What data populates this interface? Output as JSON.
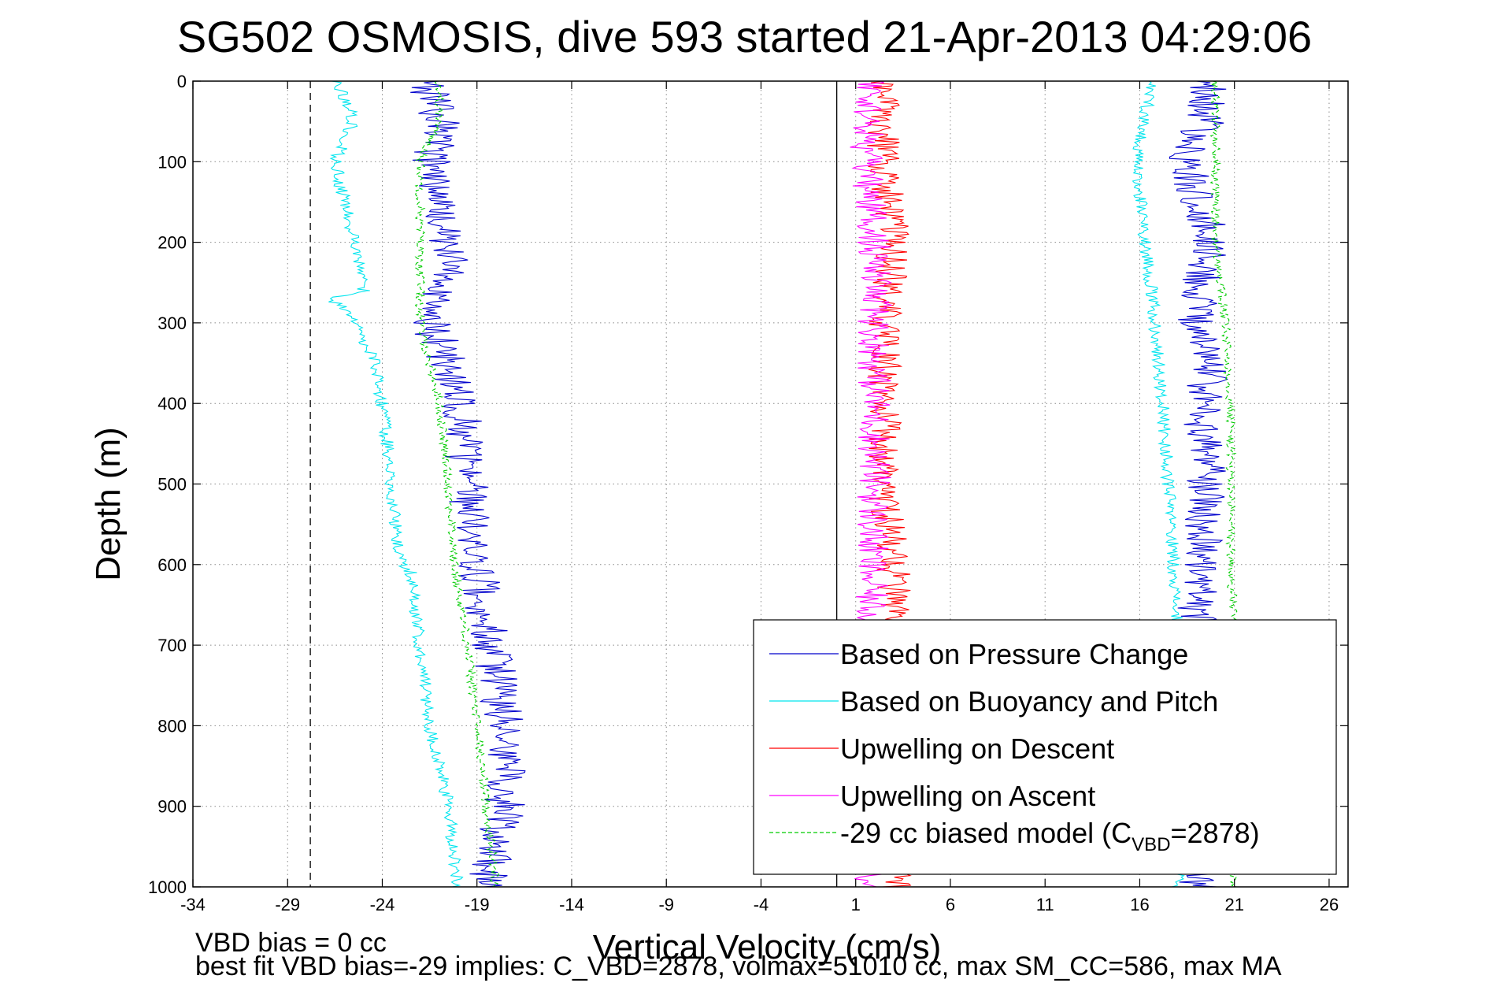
{
  "chart_data": {
    "type": "line",
    "title": "SG502 OSMOSIS, dive 593 started 21-Apr-2013 04:29:06",
    "xlabel": "Vertical Velocity (cm/s)",
    "ylabel": "Depth (m)",
    "xlim": [
      -34,
      27
    ],
    "ylim": [
      0,
      1000
    ],
    "y_reversed": true,
    "grid": "dotted",
    "xticks": [
      -34,
      -29,
      -24,
      -19,
      -14,
      -9,
      -4,
      1,
      6,
      11,
      16,
      21,
      26
    ],
    "yticks": [
      0,
      100,
      200,
      300,
      400,
      500,
      600,
      700,
      800,
      900,
      1000
    ],
    "reference_lines": [
      {
        "style": "dashed",
        "color": "#000000",
        "x": -27.8
      },
      {
        "style": "solid",
        "color": "#000000",
        "x": 0
      }
    ],
    "legend_position": "bottom-right",
    "series": [
      {
        "name": "Based on Pressure Change",
        "color": "#0000cc",
        "noise": 1.1,
        "descent": {
          "depth": [
            0,
            20,
            50,
            100,
            200,
            250,
            300,
            350,
            400,
            500,
            600,
            700,
            800,
            900,
            1000
          ],
          "velocity": [
            -21.5,
            -21.5,
            -21.0,
            -21.5,
            -20.5,
            -20.5,
            -21.5,
            -20.5,
            -19.8,
            -19.5,
            -19.0,
            -18.3,
            -17.5,
            -17.5,
            -18.5
          ]
        },
        "ascent": {
          "depth": [
            0,
            20,
            50,
            100,
            200,
            300,
            350,
            400,
            500,
            600,
            700,
            800,
            900,
            1000
          ],
          "velocity": [
            19.5,
            19.5,
            19.5,
            18.5,
            19.8,
            18.8,
            20.0,
            19.2,
            19.5,
            19.2,
            19.0,
            19.0,
            19.0,
            19.0
          ]
        }
      },
      {
        "name": "Based on Buoyancy and Pitch",
        "color": "#00e5ee",
        "noise": 0.35,
        "descent": {
          "depth": [
            0,
            20,
            50,
            100,
            200,
            260,
            270,
            280,
            340,
            400,
            500,
            590,
            610,
            700,
            800,
            900,
            1000
          ],
          "velocity": [
            -26.5,
            -26.0,
            -25.5,
            -26.5,
            -25.5,
            -25.0,
            -27.0,
            -26.0,
            -24.5,
            -24.0,
            -23.5,
            -23.2,
            -22.5,
            -22.0,
            -21.5,
            -20.5,
            -20.0
          ]
        },
        "ascent": {
          "depth": [
            0,
            20,
            100,
            200,
            300,
            400,
            500,
            600,
            700,
            800,
            900,
            1000
          ],
          "velocity": [
            16.5,
            16.5,
            15.8,
            16.3,
            16.8,
            17.2,
            17.5,
            17.8,
            18.0,
            18.0,
            18.0,
            18.0
          ]
        }
      },
      {
        "name": "Upwelling on Descent",
        "color": "#ff0000",
        "noise": 0.9,
        "descent": {
          "depth": [
            0,
            100,
            200,
            300,
            400,
            500,
            600,
            700,
            800,
            900,
            1000
          ],
          "velocity": [
            2.5,
            2.5,
            3.0,
            2.5,
            2.5,
            2.5,
            3.0,
            3.0,
            3.0,
            3.0,
            3.0
          ]
        }
      },
      {
        "name": "Upwelling on Ascent",
        "color": "#ff00ff",
        "noise": 0.9,
        "ascent": {
          "depth": [
            0,
            100,
            200,
            300,
            400,
            500,
            600,
            700,
            800,
            900,
            1000
          ],
          "velocity": [
            1.8,
            1.5,
            2.0,
            2.0,
            2.0,
            2.0,
            1.8,
            1.8,
            1.8,
            1.8,
            1.8
          ]
        }
      },
      {
        "name": "-29 cc biased model (C",
        "name_subscript": "VBD",
        "name_suffix": "=2878)",
        "color": "#00cc00",
        "noise": 0.25,
        "dashed": true,
        "descent": {
          "depth": [
            0,
            20,
            50,
            100,
            200,
            300,
            400,
            500,
            600,
            700,
            800,
            900,
            1000
          ],
          "velocity": [
            -21.0,
            -21.0,
            -21.0,
            -22.0,
            -22.0,
            -22.0,
            -21.0,
            -20.5,
            -20.2,
            -19.5,
            -19.0,
            -18.5,
            -18.0
          ]
        },
        "ascent": {
          "depth": [
            0,
            20,
            100,
            200,
            300,
            400,
            500,
            600,
            700,
            800,
            900,
            1000
          ],
          "velocity": [
            20.0,
            20.0,
            20.0,
            20.0,
            20.5,
            20.8,
            20.8,
            20.8,
            21.0,
            21.0,
            21.0,
            21.0
          ]
        }
      }
    ]
  },
  "footer": {
    "line1": "VBD bias = 0 cc",
    "line2": "best fit VBD bias=-29 implies: C_VBD=2878, volmax=51010 cc, max SM_CC=586, max MA"
  }
}
